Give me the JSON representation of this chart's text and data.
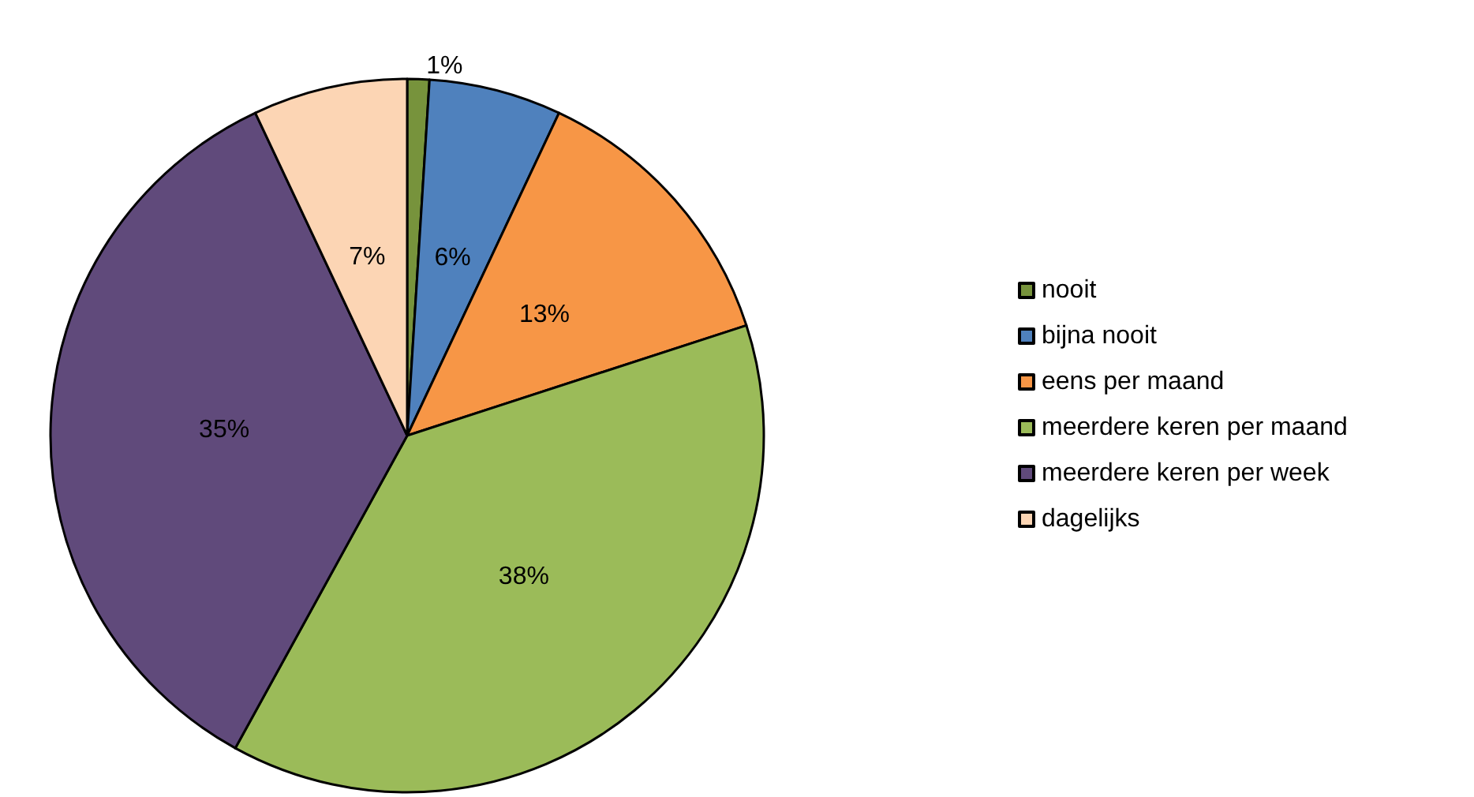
{
  "chart_data": {
    "type": "pie",
    "categories": [
      "nooit",
      "bijna nooit",
      "eens per maand",
      "meerdere keren per maand",
      "meerdere keren per week",
      "dagelijks"
    ],
    "values": [
      1,
      6,
      13,
      38,
      35,
      7
    ],
    "colors": [
      "#77933c",
      "#4f81bd",
      "#f79646",
      "#9bbb59",
      "#604a7b",
      "#fcd5b4"
    ],
    "value_labels": [
      "1%",
      "6%",
      "13%",
      "38%",
      "35%",
      "7%"
    ],
    "legend": "right"
  }
}
